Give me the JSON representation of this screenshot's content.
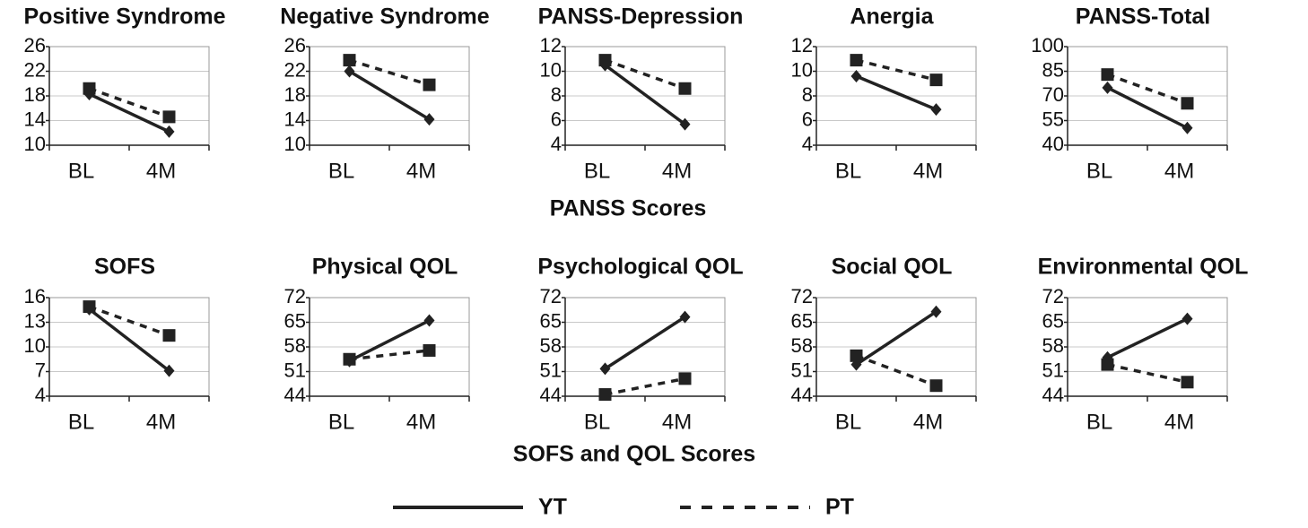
{
  "chart_data": [
    {
      "type": "line",
      "title": "Positive Syndrome",
      "categories": [
        "BL",
        "4M"
      ],
      "ylim": [
        10,
        26
      ],
      "yticks": [
        10,
        14,
        18,
        22,
        26
      ],
      "grid": true,
      "series": [
        {
          "name": "YT",
          "color": "#222222",
          "line_style": "solid",
          "marker": "diamond",
          "values": [
            18.3,
            12.2
          ]
        },
        {
          "name": "PT",
          "color": "#222222",
          "line_style": "dashed",
          "marker": "square",
          "values": [
            19.2,
            14.6
          ]
        }
      ]
    },
    {
      "type": "line",
      "title": "Negative Syndrome",
      "categories": [
        "BL",
        "4M"
      ],
      "ylim": [
        10,
        26
      ],
      "yticks": [
        10,
        14,
        18,
        22,
        26
      ],
      "grid": true,
      "series": [
        {
          "name": "YT",
          "color": "#222222",
          "line_style": "solid",
          "marker": "diamond",
          "values": [
            22,
            14.2
          ]
        },
        {
          "name": "PT",
          "color": "#222222",
          "line_style": "dashed",
          "marker": "square",
          "values": [
            23.8,
            19.8
          ]
        }
      ]
    },
    {
      "type": "line",
      "title": "PANSS-Depression",
      "categories": [
        "BL",
        "4M"
      ],
      "ylim": [
        4,
        12
      ],
      "yticks": [
        4,
        6,
        8,
        10,
        12
      ],
      "grid": true,
      "series": [
        {
          "name": "YT",
          "color": "#222222",
          "line_style": "solid",
          "marker": "diamond",
          "values": [
            10.5,
            5.7
          ]
        },
        {
          "name": "PT",
          "color": "#222222",
          "line_style": "dashed",
          "marker": "square",
          "values": [
            10.9,
            8.6
          ]
        }
      ]
    },
    {
      "type": "line",
      "title": "Anergia",
      "categories": [
        "BL",
        "4M"
      ],
      "ylim": [
        4,
        12
      ],
      "yticks": [
        4,
        6,
        8,
        10,
        12
      ],
      "grid": true,
      "series": [
        {
          "name": "YT",
          "color": "#222222",
          "line_style": "solid",
          "marker": "diamond",
          "values": [
            9.6,
            6.9
          ]
        },
        {
          "name": "PT",
          "color": "#222222",
          "line_style": "dashed",
          "marker": "square",
          "values": [
            10.9,
            9.3
          ]
        }
      ]
    },
    {
      "type": "line",
      "title": "PANSS-Total",
      "categories": [
        "BL",
        "4M"
      ],
      "ylim": [
        40,
        100
      ],
      "yticks": [
        40,
        55,
        70,
        85,
        100
      ],
      "grid": true,
      "series": [
        {
          "name": "YT",
          "color": "#222222",
          "line_style": "solid",
          "marker": "diamond",
          "values": [
            75,
            50.5
          ]
        },
        {
          "name": "PT",
          "color": "#222222",
          "line_style": "dashed",
          "marker": "square",
          "values": [
            83,
            65.5
          ]
        }
      ]
    },
    {
      "type": "line",
      "title": "SOFS",
      "categories": [
        "BL",
        "4M"
      ],
      "ylim": [
        4,
        16
      ],
      "yticks": [
        4,
        7,
        10,
        13,
        16
      ],
      "grid": true,
      "series": [
        {
          "name": "YT",
          "color": "#222222",
          "line_style": "solid",
          "marker": "diamond",
          "values": [
            14.6,
            7.1
          ]
        },
        {
          "name": "PT",
          "color": "#222222",
          "line_style": "dashed",
          "marker": "square",
          "values": [
            14.9,
            11.4
          ]
        }
      ]
    },
    {
      "type": "line",
      "title": "Physical QOL",
      "categories": [
        "BL",
        "4M"
      ],
      "ylim": [
        44,
        72
      ],
      "yticks": [
        44,
        51,
        58,
        65,
        72
      ],
      "grid": true,
      "series": [
        {
          "name": "YT",
          "color": "#222222",
          "line_style": "solid",
          "marker": "diamond",
          "values": [
            54,
            65.5
          ]
        },
        {
          "name": "PT",
          "color": "#222222",
          "line_style": "dashed",
          "marker": "square",
          "values": [
            54.5,
            57
          ]
        }
      ]
    },
    {
      "type": "line",
      "title": "Psychological QOL",
      "categories": [
        "BL",
        "4M"
      ],
      "ylim": [
        44,
        72
      ],
      "yticks": [
        44,
        51,
        58,
        65,
        72
      ],
      "grid": true,
      "series": [
        {
          "name": "YT",
          "color": "#222222",
          "line_style": "solid",
          "marker": "diamond",
          "values": [
            51.8,
            66.5
          ]
        },
        {
          "name": "PT",
          "color": "#222222",
          "line_style": "dashed",
          "marker": "square",
          "values": [
            44.5,
            49
          ]
        }
      ]
    },
    {
      "type": "line",
      "title": "Social QOL",
      "categories": [
        "BL",
        "4M"
      ],
      "ylim": [
        44,
        72
      ],
      "yticks": [
        44,
        51,
        58,
        65,
        72
      ],
      "grid": true,
      "series": [
        {
          "name": "YT",
          "color": "#222222",
          "line_style": "solid",
          "marker": "diamond",
          "values": [
            53,
            68
          ]
        },
        {
          "name": "PT",
          "color": "#222222",
          "line_style": "dashed",
          "marker": "square",
          "values": [
            55.5,
            47
          ]
        }
      ]
    },
    {
      "type": "line",
      "title": "Environmental QOL",
      "categories": [
        "BL",
        "4M"
      ],
      "ylim": [
        44,
        72
      ],
      "yticks": [
        44,
        51,
        58,
        65,
        72
      ],
      "grid": true,
      "series": [
        {
          "name": "YT",
          "color": "#222222",
          "line_style": "solid",
          "marker": "diamond",
          "values": [
            55,
            66
          ]
        },
        {
          "name": "PT",
          "color": "#222222",
          "line_style": "dashed",
          "marker": "square",
          "values": [
            53,
            48
          ]
        }
      ]
    }
  ],
  "sections": [
    "PANSS Scores",
    "SOFS and QOL Scores"
  ]
}
